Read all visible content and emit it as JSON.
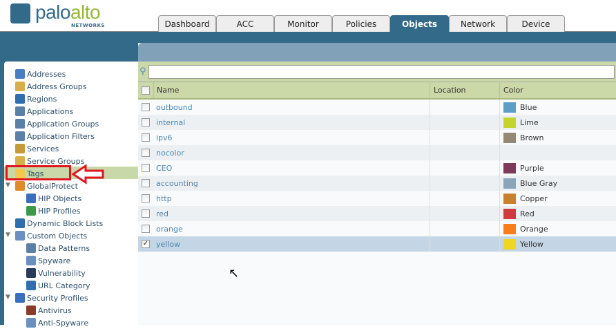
{
  "logo": {
    "mark": "////",
    "brand_a": "palo",
    "brand_b": "alto",
    "sub": "NETWORKS"
  },
  "tabs": [
    {
      "label": "Dashboard"
    },
    {
      "label": "ACC"
    },
    {
      "label": "Monitor"
    },
    {
      "label": "Policies"
    },
    {
      "label": "Objects",
      "selected": true
    },
    {
      "label": "Network"
    },
    {
      "label": "Device"
    }
  ],
  "sidebar": {
    "items": [
      {
        "label": "Addresses",
        "level": 1,
        "icon": "addresses-icon",
        "color": "#4a7fc1"
      },
      {
        "label": "Address Groups",
        "level": 1,
        "icon": "address-groups-icon",
        "color": "#d8b04a"
      },
      {
        "label": "Regions",
        "level": 1,
        "icon": "globe-icon",
        "color": "#2f6fb0"
      },
      {
        "label": "Applications",
        "level": 1,
        "icon": "applications-icon",
        "color": "#5a80a8"
      },
      {
        "label": "Application Groups",
        "level": 1,
        "icon": "application-groups-icon",
        "color": "#5a80a8"
      },
      {
        "label": "Application Filters",
        "level": 1,
        "icon": "application-filters-icon",
        "color": "#5a80a8"
      },
      {
        "label": "Services",
        "level": 1,
        "icon": "services-icon",
        "color": "#c49a3a"
      },
      {
        "label": "Service Groups",
        "level": 1,
        "icon": "service-groups-icon",
        "color": "#d8b04a"
      },
      {
        "label": "Tags",
        "level": 1,
        "icon": "tag-icon",
        "color": "#f2c94c",
        "selected": true
      },
      {
        "label": "GlobalProtect",
        "level": 1,
        "icon": "globalprotect-icon",
        "color": "#e08a2a",
        "expanded": true
      },
      {
        "label": "HIP Objects",
        "level": 2,
        "icon": "hip-objects-icon",
        "color": "#3a6fc0"
      },
      {
        "label": "HIP Profiles",
        "level": 2,
        "icon": "hip-profiles-icon",
        "color": "#3a9a4a"
      },
      {
        "label": "Dynamic Block Lists",
        "level": 1,
        "icon": "dynamic-block-lists-icon",
        "color": "#2f6fb0"
      },
      {
        "label": "Custom Objects",
        "level": 1,
        "icon": "custom-objects-icon",
        "color": "#6a8fc0",
        "expanded": true
      },
      {
        "label": "Data Patterns",
        "level": 2,
        "icon": "data-patterns-icon",
        "color": "#5a80a8"
      },
      {
        "label": "Spyware",
        "level": 2,
        "icon": "spyware-icon",
        "color": "#6a8fc0"
      },
      {
        "label": "Vulnerability",
        "level": 2,
        "icon": "vulnerability-icon",
        "color": "#2a3a5a"
      },
      {
        "label": "URL Category",
        "level": 2,
        "icon": "url-category-icon",
        "color": "#2f6fb0"
      },
      {
        "label": "Security Profiles",
        "level": 1,
        "icon": "security-profiles-icon",
        "color": "#3a6fc0",
        "expanded": true
      },
      {
        "label": "Antivirus",
        "level": 2,
        "icon": "antivirus-icon",
        "color": "#8a3a2a"
      },
      {
        "label": "Anti-Spyware",
        "level": 2,
        "icon": "anti-spyware-icon",
        "color": "#6a8fc0"
      }
    ]
  },
  "search": {
    "placeholder": "",
    "value": ""
  },
  "table": {
    "columns": [
      "Name",
      "Location",
      "Color"
    ],
    "rows": [
      {
        "name": "outbound",
        "location": "",
        "color": "Blue",
        "hex": "#5b9ec6",
        "checked": false
      },
      {
        "name": "internal",
        "location": "",
        "color": "Lime",
        "hex": "#c3d52d",
        "checked": false
      },
      {
        "name": "ipv6",
        "location": "",
        "color": "Brown",
        "hex": "#948a74",
        "checked": false
      },
      {
        "name": "nocolor",
        "location": "",
        "color": "",
        "hex": "",
        "checked": false
      },
      {
        "name": "CEO",
        "location": "",
        "color": "Purple",
        "hex": "#7f3a5a",
        "checked": false
      },
      {
        "name": "accounting",
        "location": "",
        "color": "Blue Gray",
        "hex": "#8aa4ba",
        "checked": false
      },
      {
        "name": "http",
        "location": "",
        "color": "Copper",
        "hex": "#c8822e",
        "checked": false
      },
      {
        "name": "red",
        "location": "",
        "color": "Red",
        "hex": "#d03a3e",
        "checked": false
      },
      {
        "name": "orange",
        "location": "",
        "color": "Orange",
        "hex": "#f97d18",
        "checked": false
      },
      {
        "name": "yellow",
        "location": "",
        "color": "Yellow",
        "hex": "#eed623",
        "checked": true
      }
    ]
  }
}
